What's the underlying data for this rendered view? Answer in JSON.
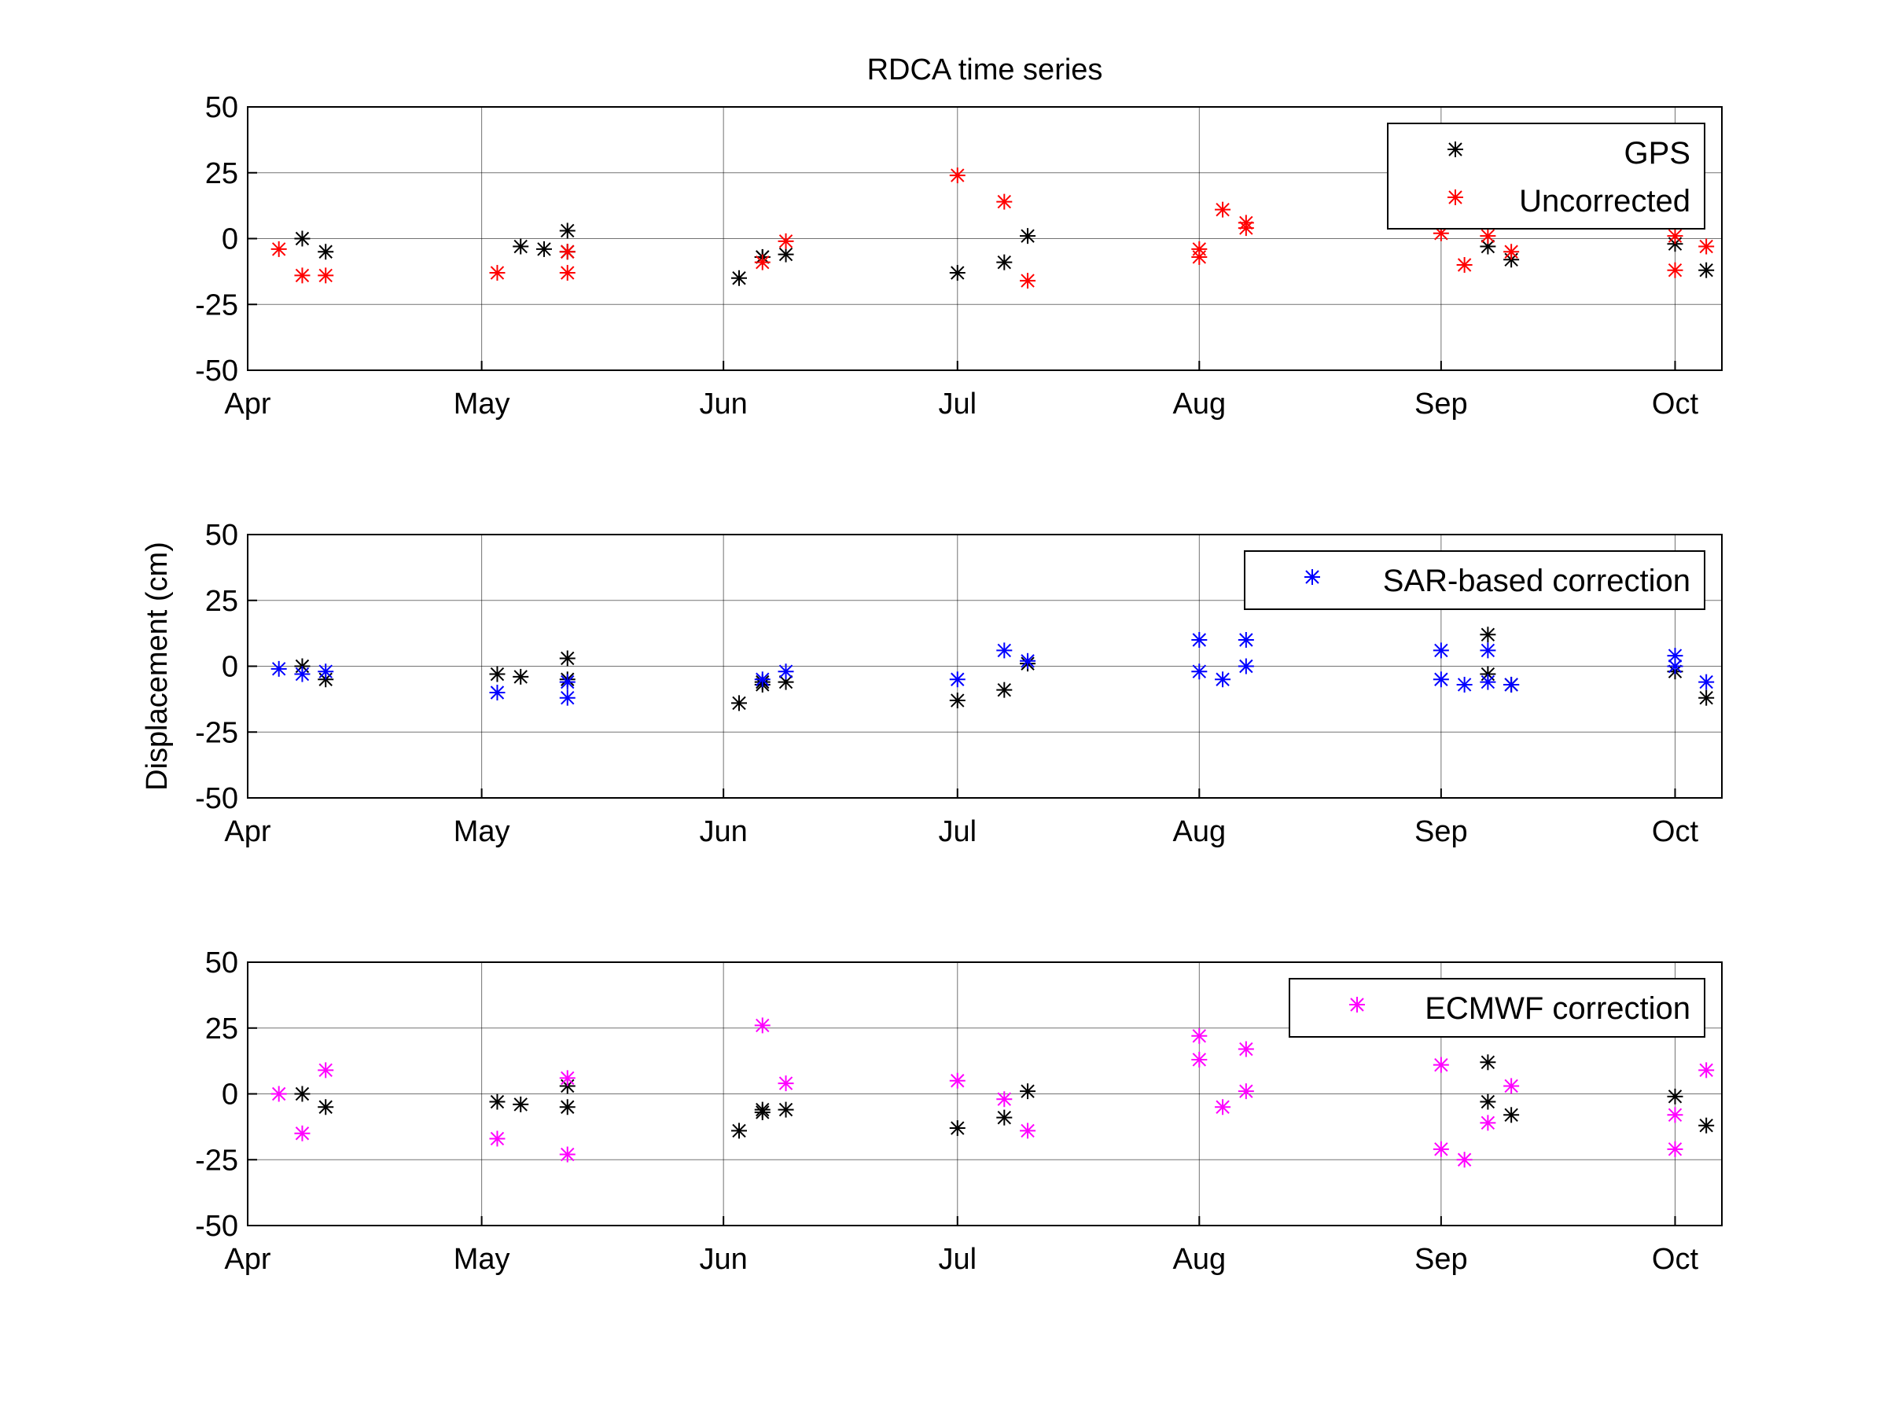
{
  "chart_data": [
    {
      "type": "scatter",
      "title": "RDCA time series",
      "ylabel": "",
      "xlabel": "",
      "x_tick_labels": [
        "Apr",
        "May",
        "Jun",
        "Jul",
        "Aug",
        "Sep",
        "Oct"
      ],
      "y_tick_labels": [
        "50",
        "25",
        "0",
        "-25",
        "-50"
      ],
      "xlim": [
        "2012-04-01",
        "2012-10-07"
      ],
      "ylim": [
        -50,
        50
      ],
      "grid": true,
      "legend_position": "top-right",
      "series": [
        {
          "name": "GPS",
          "color": "#000000",
          "marker": "asterisk",
          "points": [
            [
              "2012-04-08",
              0
            ],
            [
              "2012-04-11",
              -5
            ],
            [
              "2012-05-06",
              -3
            ],
            [
              "2012-05-09",
              -4
            ],
            [
              "2012-05-12",
              -5
            ],
            [
              "2012-05-12",
              3
            ],
            [
              "2012-06-03",
              -15
            ],
            [
              "2012-06-06",
              -7
            ],
            [
              "2012-06-06",
              -7
            ],
            [
              "2012-06-09",
              -6
            ],
            [
              "2012-07-01",
              -13
            ],
            [
              "2012-07-07",
              -9
            ],
            [
              "2012-07-10",
              1
            ],
            [
              "2012-09-07",
              -3
            ],
            [
              "2012-09-10",
              -8
            ],
            [
              "2012-10-01",
              -2
            ],
            [
              "2012-10-05",
              -12
            ]
          ]
        },
        {
          "name": "Uncorrected",
          "color": "#ff0000",
          "marker": "asterisk",
          "points": [
            [
              "2012-04-05",
              -4
            ],
            [
              "2012-04-08",
              -14
            ],
            [
              "2012-04-11",
              -14
            ],
            [
              "2012-05-03",
              -13
            ],
            [
              "2012-05-12",
              -5
            ],
            [
              "2012-05-12",
              -13
            ],
            [
              "2012-06-06",
              -9
            ],
            [
              "2012-06-09",
              -1
            ],
            [
              "2012-07-01",
              24
            ],
            [
              "2012-07-07",
              14
            ],
            [
              "2012-07-10",
              -16
            ],
            [
              "2012-08-01",
              -7
            ],
            [
              "2012-08-01",
              -4
            ],
            [
              "2012-08-04",
              11
            ],
            [
              "2012-08-07",
              6
            ],
            [
              "2012-08-07",
              4
            ],
            [
              "2012-09-01",
              2
            ],
            [
              "2012-09-04",
              -10
            ],
            [
              "2012-09-07",
              1
            ],
            [
              "2012-09-10",
              -5
            ],
            [
              "2012-10-01",
              1
            ],
            [
              "2012-10-01",
              -12
            ],
            [
              "2012-10-05",
              -3
            ]
          ]
        }
      ]
    },
    {
      "type": "scatter",
      "title": "",
      "ylabel": "Displacement (cm)",
      "xlabel": "",
      "x_tick_labels": [
        "Apr",
        "May",
        "Jun",
        "Jul",
        "Aug",
        "Sep",
        "Oct"
      ],
      "y_tick_labels": [
        "50",
        "25",
        "0",
        "-25",
        "-50"
      ],
      "xlim": [
        "2012-04-01",
        "2012-10-07"
      ],
      "ylim": [
        -50,
        50
      ],
      "grid": true,
      "legend_position": "top-right",
      "series": [
        {
          "name": "",
          "color": "#000000",
          "marker": "asterisk",
          "points": [
            [
              "2012-04-08",
              0
            ],
            [
              "2012-04-11",
              -5
            ],
            [
              "2012-05-03",
              -3
            ],
            [
              "2012-05-06",
              -4
            ],
            [
              "2012-05-12",
              -5
            ],
            [
              "2012-05-12",
              3
            ],
            [
              "2012-06-03",
              -14
            ],
            [
              "2012-06-06",
              -7
            ],
            [
              "2012-06-06",
              -6
            ],
            [
              "2012-06-09",
              -6
            ],
            [
              "2012-07-01",
              -13
            ],
            [
              "2012-07-07",
              -9
            ],
            [
              "2012-07-10",
              1
            ],
            [
              "2012-09-07",
              12
            ],
            [
              "2012-09-07",
              -3
            ],
            [
              "2012-09-10",
              -7
            ],
            [
              "2012-10-01",
              -2
            ],
            [
              "2012-10-05",
              -12
            ]
          ]
        },
        {
          "name": "SAR-based correction",
          "color": "#0000ff",
          "marker": "asterisk",
          "points": [
            [
              "2012-04-05",
              -1
            ],
            [
              "2012-04-08",
              -3
            ],
            [
              "2012-04-11",
              -2
            ],
            [
              "2012-05-03",
              -10
            ],
            [
              "2012-05-12",
              -12
            ],
            [
              "2012-05-12",
              -6
            ],
            [
              "2012-06-06",
              -5
            ],
            [
              "2012-06-09",
              -2
            ],
            [
              "2012-07-01",
              -5
            ],
            [
              "2012-07-07",
              6
            ],
            [
              "2012-07-10",
              2
            ],
            [
              "2012-08-01",
              -2
            ],
            [
              "2012-08-01",
              10
            ],
            [
              "2012-08-04",
              -5
            ],
            [
              "2012-08-07",
              10
            ],
            [
              "2012-08-07",
              0
            ],
            [
              "2012-09-01",
              6
            ],
            [
              "2012-09-01",
              -5
            ],
            [
              "2012-09-04",
              -7
            ],
            [
              "2012-09-07",
              6
            ],
            [
              "2012-09-07",
              -6
            ],
            [
              "2012-09-10",
              -7
            ],
            [
              "2012-10-01",
              4
            ],
            [
              "2012-10-01",
              0
            ],
            [
              "2012-10-05",
              -6
            ]
          ]
        }
      ]
    },
    {
      "type": "scatter",
      "title": "",
      "ylabel": "",
      "xlabel": "",
      "x_tick_labels": [
        "Apr",
        "May",
        "Jun",
        "Jul",
        "Aug",
        "Sep",
        "Oct"
      ],
      "y_tick_labels": [
        "50",
        "25",
        "0",
        "-25",
        "-50"
      ],
      "xlim": [
        "2012-04-01",
        "2012-10-07"
      ],
      "ylim": [
        -50,
        50
      ],
      "grid": true,
      "legend_position": "top-right",
      "series": [
        {
          "name": "",
          "color": "#000000",
          "marker": "asterisk",
          "points": [
            [
              "2012-04-08",
              0
            ],
            [
              "2012-04-11",
              -5
            ],
            [
              "2012-05-03",
              -3
            ],
            [
              "2012-05-06",
              -4
            ],
            [
              "2012-05-12",
              -5
            ],
            [
              "2012-05-12",
              3
            ],
            [
              "2012-06-03",
              -14
            ],
            [
              "2012-06-06",
              -7
            ],
            [
              "2012-06-06",
              -6
            ],
            [
              "2012-06-09",
              -6
            ],
            [
              "2012-07-01",
              -13
            ],
            [
              "2012-07-07",
              -9
            ],
            [
              "2012-07-10",
              1
            ],
            [
              "2012-09-07",
              12
            ],
            [
              "2012-09-07",
              -3
            ],
            [
              "2012-09-10",
              -8
            ],
            [
              "2012-10-01",
              -1
            ],
            [
              "2012-10-05",
              -12
            ]
          ]
        },
        {
          "name": "ECMWF correction",
          "color": "#ff00ff",
          "marker": "asterisk",
          "points": [
            [
              "2012-04-05",
              0
            ],
            [
              "2012-04-08",
              -15
            ],
            [
              "2012-04-11",
              9
            ],
            [
              "2012-05-03",
              -17
            ],
            [
              "2012-05-12",
              6
            ],
            [
              "2012-05-12",
              -23
            ],
            [
              "2012-06-06",
              26
            ],
            [
              "2012-06-09",
              4
            ],
            [
              "2012-07-01",
              5
            ],
            [
              "2012-07-07",
              -2
            ],
            [
              "2012-07-10",
              -14
            ],
            [
              "2012-08-01",
              13
            ],
            [
              "2012-08-01",
              22
            ],
            [
              "2012-08-04",
              -5
            ],
            [
              "2012-08-07",
              17
            ],
            [
              "2012-08-07",
              1
            ],
            [
              "2012-09-01",
              11
            ],
            [
              "2012-09-01",
              -21
            ],
            [
              "2012-09-04",
              -25
            ],
            [
              "2012-09-07",
              -11
            ],
            [
              "2012-09-10",
              3
            ],
            [
              "2012-10-01",
              -8
            ],
            [
              "2012-10-01",
              -21
            ],
            [
              "2012-10-05",
              9
            ]
          ]
        }
      ]
    }
  ]
}
